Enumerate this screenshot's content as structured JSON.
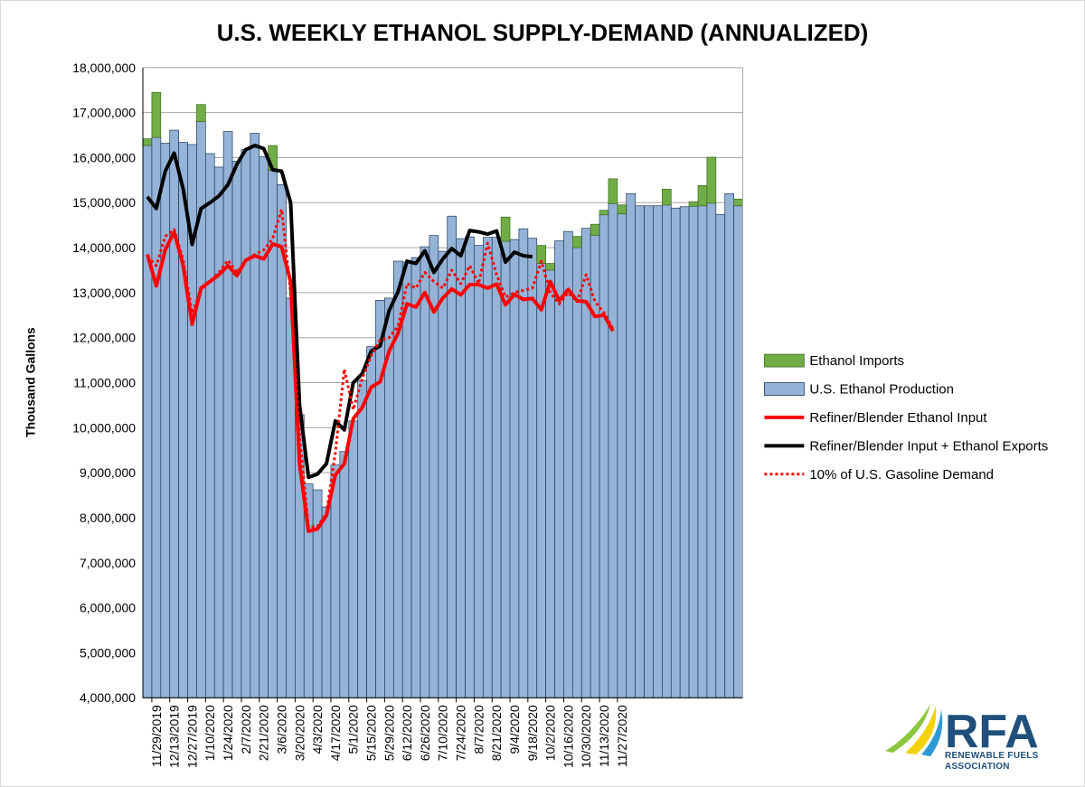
{
  "chart_data": {
    "type": "bar",
    "title": "U.S. WEEKLY ETHANOL SUPPLY-DEMAND (ANNUALIZED)",
    "ylabel": "Thousand Gallons",
    "xlabel": "",
    "ylim": [
      4000000,
      18000000
    ],
    "yticks": [
      "4,000,000",
      "5,000,000",
      "6,000,000",
      "7,000,000",
      "8,000,000",
      "9,000,000",
      "10,000,000",
      "11,000,000",
      "12,000,000",
      "13,000,000",
      "14,000,000",
      "15,000,000",
      "16,000,000",
      "17,000,000",
      "18,000,000"
    ],
    "x_tick_labels": [
      "11/29/2019",
      "12/13/2019",
      "12/27/2019",
      "1/10/2020",
      "1/24/2020",
      "2/7/2020",
      "2/21/2020",
      "3/6/2020",
      "3/20/2020",
      "4/3/2020",
      "4/17/2020",
      "5/1/2020",
      "5/15/2020",
      "5/29/2020",
      "6/12/2020",
      "6/26/2020",
      "7/10/2020",
      "7/24/2020",
      "8/7/2020",
      "8/21/2020",
      "9/4/2020",
      "9/18/2020",
      "10/2/2020",
      "10/16/2020",
      "10/30/2020",
      "11/13/2020",
      "11/27/2020"
    ],
    "grid": true,
    "legend_position": "right",
    "series": [
      {
        "name": "Ethanol Imports",
        "kind": "stacked-bar",
        "color": "#70ad47",
        "values": [
          150000,
          1000000,
          0,
          0,
          0,
          0,
          380000,
          0,
          0,
          0,
          0,
          0,
          0,
          0,
          550000,
          0,
          0,
          0,
          0,
          0,
          0,
          0,
          0,
          0,
          0,
          0,
          0,
          0,
          0,
          0,
          0,
          0,
          0,
          0,
          0,
          0,
          0,
          0,
          0,
          0,
          540000,
          0,
          0,
          0,
          400000,
          150000,
          0,
          0,
          250000,
          0,
          250000,
          100000,
          550000,
          200000,
          0,
          0,
          0,
          0,
          350000,
          0,
          0,
          100000,
          450000,
          1020000,
          0,
          0,
          150000
        ]
      },
      {
        "name": "U.S. Ethanol Production",
        "kind": "bar",
        "color": "#95b3d7",
        "values": [
          16270000,
          16450000,
          16320000,
          16610000,
          16340000,
          16290000,
          16800000,
          16090000,
          15790000,
          16580000,
          15920000,
          16180000,
          16540000,
          16020000,
          15720000,
          15400000,
          12880000,
          10290000,
          8750000,
          8620000,
          8240000,
          9170000,
          9470000,
          10150000,
          11050000,
          11800000,
          12830000,
          12880000,
          13700000,
          13680000,
          13780000,
          14020000,
          14270000,
          13920000,
          14700000,
          14200000,
          14240000,
          14050000,
          14230000,
          14230000,
          14140000,
          14180000,
          14420000,
          14210000,
          13650000,
          13500000,
          14150000,
          14360000,
          14000000,
          14430000,
          14270000,
          14730000,
          14980000,
          14750000,
          15200000,
          14930000,
          14930000,
          14930000,
          14950000,
          14880000,
          14910000,
          14920000,
          14930000,
          14990000,
          14740000,
          15200000,
          14930000
        ]
      },
      {
        "name": "Refiner/Blender Ethanol Input",
        "kind": "line",
        "color": "#ff0000",
        "style": "solid",
        "values": [
          13850000,
          13150000,
          13950000,
          14350000,
          13600000,
          12300000,
          13100000,
          13250000,
          13400000,
          13600000,
          13380000,
          13720000,
          13820000,
          13750000,
          14080000,
          14020000,
          13250000,
          9200000,
          7700000,
          7750000,
          8050000,
          8950000,
          9200000,
          10200000,
          10450000,
          10900000,
          11020000,
          11700000,
          12100000,
          12750000,
          12680000,
          13000000,
          12570000,
          12880000,
          13080000,
          12950000,
          13180000,
          13180000,
          13100000,
          13190000,
          12730000,
          12960000,
          12850000,
          12870000,
          12620000,
          13250000,
          12820000,
          13070000,
          12820000,
          12800000,
          12470000,
          12500000,
          12150000
        ]
      },
      {
        "name": "Refiner/Blender Input + Ethanol Exports",
        "kind": "line",
        "color": "#000000",
        "style": "solid",
        "values": [
          15130000,
          14870000,
          15700000,
          16100000,
          15300000,
          14070000,
          14870000,
          15000000,
          15150000,
          15400000,
          15850000,
          16180000,
          16270000,
          16200000,
          15730000,
          15700000,
          15000000,
          10500000,
          8900000,
          8970000,
          9200000,
          10150000,
          9950000,
          11000000,
          11200000,
          11700000,
          11820000,
          12600000,
          13020000,
          13700000,
          13650000,
          13930000,
          13450000,
          13750000,
          13980000,
          13820000,
          14380000,
          14350000,
          14300000,
          14370000,
          13680000,
          13900000,
          13820000,
          13800000
        ]
      },
      {
        "name": "10% of U.S. Gasoline Demand",
        "kind": "line",
        "color": "#ff0000",
        "style": "dotted",
        "values": [
          13800000,
          13600000,
          14250000,
          14400000,
          13720000,
          12550000,
          13050000,
          13250000,
          13450000,
          13720000,
          13450000,
          13720000,
          13850000,
          13950000,
          14200000,
          14850000,
          13000000,
          9800000,
          7800000,
          7800000,
          8100000,
          9450000,
          11300000,
          10400000,
          11100000,
          11600000,
          11950000,
          12000000,
          12250000,
          13200000,
          13100000,
          13450000,
          13250000,
          13100000,
          13500000,
          13200000,
          13600000,
          13200000,
          14100000,
          13400000,
          12900000,
          13000000,
          13050000,
          13100000,
          13700000,
          13000000,
          12750000,
          13000000,
          12800000,
          13400000,
          12800000,
          12550000,
          12200000
        ]
      }
    ]
  },
  "logo": {
    "text": "RFA",
    "line1": "RENEWABLE FUELS",
    "line2": "ASSOCIATION"
  }
}
